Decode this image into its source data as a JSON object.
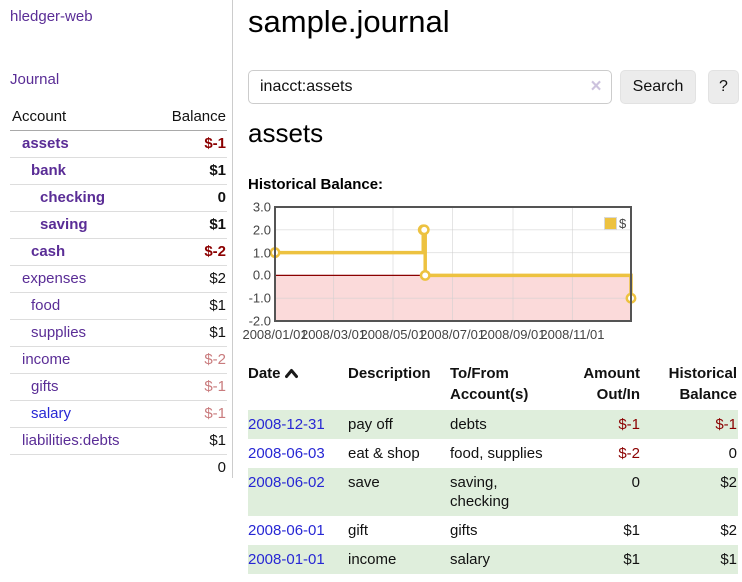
{
  "app": {
    "title": "hledger-web",
    "journal_link": "Journal"
  },
  "colors": {
    "link_purple": "#5a2d96",
    "link_blue": "#2727d4",
    "negative_strong": "#8b0000",
    "negative_soft": "#c97b7d",
    "row_stripe_green": "#dfeedc",
    "chart_line": "#edc240"
  },
  "sidebar": {
    "account_header": "Account",
    "balance_header": "Balance",
    "accounts": [
      {
        "name": "assets",
        "depth": 1,
        "bold": true,
        "balance": "$-1",
        "balance_tone": "negative",
        "link_tone": "visited"
      },
      {
        "name": "bank",
        "depth": 2,
        "bold": true,
        "balance": "$1",
        "balance_tone": "normal",
        "link_tone": "visited"
      },
      {
        "name": "checking",
        "depth": 3,
        "bold": true,
        "balance": "0",
        "balance_tone": "normal",
        "link_tone": "visited"
      },
      {
        "name": "saving",
        "depth": 3,
        "bold": true,
        "balance": "$1",
        "balance_tone": "normal",
        "link_tone": "visited"
      },
      {
        "name": "cash",
        "depth": 2,
        "bold": true,
        "balance": "$-2",
        "balance_tone": "negative",
        "link_tone": "visited"
      },
      {
        "name": "expenses",
        "depth": 1,
        "bold": false,
        "balance": "$2",
        "balance_tone": "normal",
        "link_tone": "visited"
      },
      {
        "name": "food",
        "depth": 2,
        "bold": false,
        "balance": "$1",
        "balance_tone": "normal",
        "link_tone": "visited"
      },
      {
        "name": "supplies",
        "depth": 2,
        "bold": false,
        "balance": "$1",
        "balance_tone": "normal",
        "link_tone": "visited"
      },
      {
        "name": "income",
        "depth": 1,
        "bold": false,
        "balance": "$-2",
        "balance_tone": "negative-soft",
        "link_tone": "visited"
      },
      {
        "name": "gifts",
        "depth": 2,
        "bold": false,
        "balance": "$-1",
        "balance_tone": "negative-soft",
        "link_tone": "visited"
      },
      {
        "name": "salary",
        "depth": 2,
        "bold": false,
        "balance": "$-1",
        "balance_tone": "negative-soft",
        "link_tone": "unvisited"
      },
      {
        "name": "liabilities:debts",
        "depth": 1,
        "bold": false,
        "balance": "$1",
        "balance_tone": "normal",
        "link_tone": "visited"
      }
    ],
    "total": "0"
  },
  "main": {
    "title": "sample.journal",
    "search": {
      "value": "inacct:assets",
      "clear_icon": "×",
      "button_label": "Search",
      "help_label": "?"
    },
    "account_heading": "assets",
    "chart_label": "Historical Balance:"
  },
  "chart_data": {
    "type": "line",
    "title": "Historical Balance:",
    "steps": true,
    "series": [
      {
        "name": "$",
        "color": "#edc240",
        "points": [
          [
            "2008-01-01",
            1
          ],
          [
            "2008-06-01",
            2
          ],
          [
            "2008-06-02",
            2
          ],
          [
            "2008-06-03",
            0
          ],
          [
            "2008-12-31",
            -1
          ]
        ]
      }
    ],
    "xlim": [
      "2008-01-01",
      "2008-12-31"
    ],
    "ylim": [
      -2,
      3
    ],
    "y_ticks": [
      "3.0",
      "2.0",
      "1.0",
      "0.0",
      "-1.0",
      "-2.0"
    ],
    "x_ticks": [
      "2008/01/01",
      "2008/03/01",
      "2008/05/01",
      "2008/07/01",
      "2008/09/01",
      "2008/11/01"
    ],
    "legend": {
      "label": "$",
      "position": "top-right"
    },
    "grid": true,
    "negative_region_fill": "#fbdada",
    "zero_line_color": "#8b0000",
    "border_color": "#545454",
    "grid_color": "#cfcfcf"
  },
  "register": {
    "columns": {
      "date": "Date",
      "date_sort": "ascending",
      "description": "Description",
      "accounts": "To/From Account(s)",
      "amount": "Amount Out/In",
      "balance": "Historical Balance"
    },
    "rows": [
      {
        "date": "2008-12-31",
        "description": "pay off",
        "accounts": "debts",
        "amount": "$-1",
        "amount_tone": "negative",
        "balance": "$-1",
        "balance_tone": "negative"
      },
      {
        "date": "2008-06-03",
        "description": "eat & shop",
        "accounts": "food, supplies",
        "amount": "$-2",
        "amount_tone": "negative",
        "balance": "0",
        "balance_tone": "normal"
      },
      {
        "date": "2008-06-02",
        "description": "save",
        "accounts": "saving, checking",
        "amount": "0",
        "amount_tone": "normal",
        "balance": "$2",
        "balance_tone": "normal"
      },
      {
        "date": "2008-06-01",
        "description": "gift",
        "accounts": "gifts",
        "amount": "$1",
        "amount_tone": "normal",
        "balance": "$2",
        "balance_tone": "normal"
      },
      {
        "date": "2008-01-01",
        "description": "income",
        "accounts": "salary",
        "amount": "$1",
        "amount_tone": "normal",
        "balance": "$1",
        "balance_tone": "normal"
      }
    ]
  }
}
